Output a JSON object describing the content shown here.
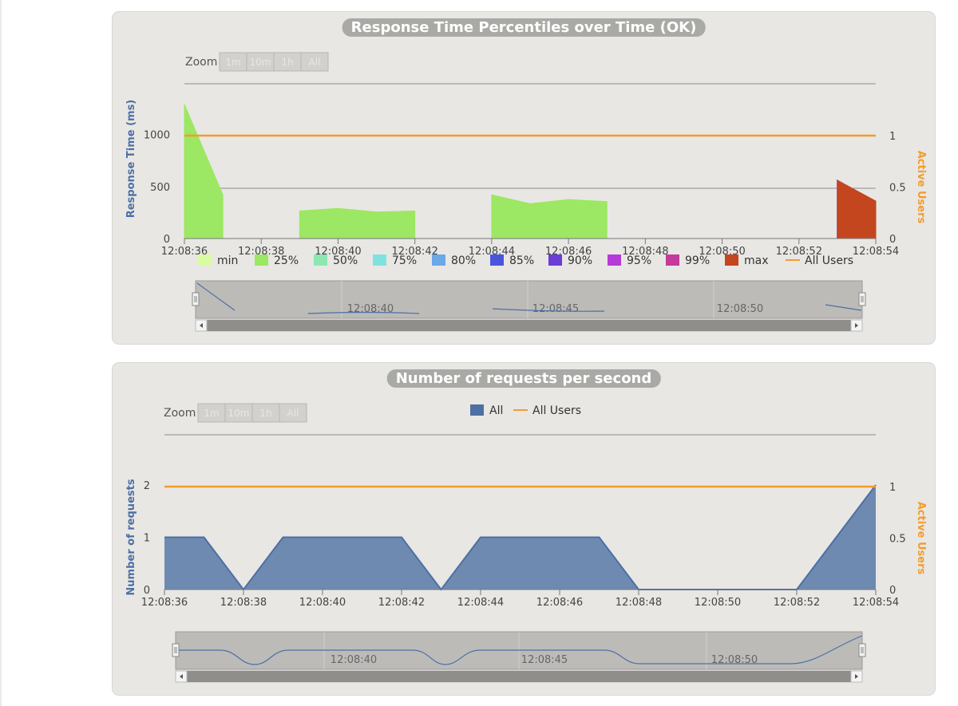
{
  "charts": {
    "response_time": {
      "title": "Response Time Percentiles over Time (OK)",
      "zoom": {
        "label": "Zoom",
        "buttons": [
          "1m",
          "10m",
          "1h",
          "All"
        ]
      },
      "y_left_label": "Response Time (ms)",
      "y_right_label": "Active Users",
      "y_left_ticks": [
        "0",
        "500",
        "1000"
      ],
      "y_right_ticks": [
        "0",
        "0.5",
        "1"
      ],
      "x_ticks": [
        "12:08:36",
        "12:08:38",
        "12:08:40",
        "12:08:42",
        "12:08:44",
        "12:08:46",
        "12:08:48",
        "12:08:50",
        "12:08:52",
        "12:08:54"
      ],
      "navigator_labels": [
        "12:08:40",
        "12:08:45",
        "12:08:50"
      ],
      "legend": [
        {
          "name": "min",
          "color": "#d9fca2"
        },
        {
          "name": "25%",
          "color": "#9ce763"
        },
        {
          "name": "50%",
          "color": "#8ce8b0"
        },
        {
          "name": "75%",
          "color": "#80e2e0"
        },
        {
          "name": "80%",
          "color": "#6aa8e6"
        },
        {
          "name": "85%",
          "color": "#4a55dc"
        },
        {
          "name": "90%",
          "color": "#6b3cd6"
        },
        {
          "name": "95%",
          "color": "#b53ad8"
        },
        {
          "name": "99%",
          "color": "#c4399a"
        },
        {
          "name": "max",
          "color": "#c4461f"
        },
        {
          "name": "All Users",
          "color": "#f39c2c",
          "line": true
        }
      ]
    },
    "requests": {
      "title": "Number of requests per second",
      "zoom": {
        "label": "Zoom",
        "buttons": [
          "1m",
          "10m",
          "1h",
          "All"
        ]
      },
      "y_left_label": "Number of requests",
      "y_right_label": "Active Users",
      "y_left_ticks": [
        "0",
        "1",
        "2"
      ],
      "y_right_ticks": [
        "0",
        "0.5",
        "1"
      ],
      "x_ticks": [
        "12:08:36",
        "12:08:38",
        "12:08:40",
        "12:08:42",
        "12:08:44",
        "12:08:46",
        "12:08:48",
        "12:08:50",
        "12:08:52",
        "12:08:54"
      ],
      "navigator_labels": [
        "12:08:40",
        "12:08:45",
        "12:08:50"
      ],
      "legend": [
        {
          "name": "All",
          "color": "#4d6fa3"
        },
        {
          "name": "All Users",
          "color": "#f39c2c",
          "line": true
        }
      ]
    }
  },
  "chart_data": [
    {
      "type": "area",
      "title": "Response Time Percentiles over Time (OK)",
      "xlabel": "",
      "ylabel": "Response Time (ms)",
      "y2label": "Active Users",
      "xlim": [
        "12:08:36",
        "12:08:54"
      ],
      "ylim": [
        0,
        1300
      ],
      "y2lim": [
        0,
        1
      ],
      "series": [
        {
          "name": "min",
          "axis": "left",
          "segments": [
            [
              [
                "12:08:36",
                1290
              ],
              [
                "12:08:37",
                420
              ]
            ],
            [
              [
                "12:08:39",
                265
              ],
              [
                "12:08:40",
                290
              ],
              [
                "12:08:41",
                255
              ],
              [
                "12:08:42",
                265
              ]
            ],
            [
              [
                "12:08:44",
                420
              ],
              [
                "12:08:45",
                335
              ],
              [
                "12:08:46",
                375
              ],
              [
                "12:08:47",
                355
              ]
            ],
            [
              [
                "12:08:53",
                560
              ],
              [
                "12:08:54",
                300
              ]
            ]
          ]
        },
        {
          "name": "25%",
          "axis": "left",
          "segments": [
            [
              [
                "12:08:36",
                1290
              ],
              [
                "12:08:37",
                420
              ]
            ],
            [
              [
                "12:08:39",
                265
              ],
              [
                "12:08:40",
                290
              ],
              [
                "12:08:41",
                255
              ],
              [
                "12:08:42",
                265
              ]
            ],
            [
              [
                "12:08:44",
                420
              ],
              [
                "12:08:45",
                335
              ],
              [
                "12:08:46",
                375
              ],
              [
                "12:08:47",
                355
              ]
            ],
            [
              [
                "12:08:53",
                560
              ],
              [
                "12:08:54",
                310
              ]
            ]
          ]
        },
        {
          "name": "50%",
          "axis": "left",
          "segments": [
            [
              [
                "12:08:53",
                560
              ],
              [
                "12:08:54",
                320
              ]
            ]
          ]
        },
        {
          "name": "75%",
          "axis": "left",
          "segments": [
            [
              [
                "12:08:53",
                560
              ],
              [
                "12:08:54",
                330
              ]
            ]
          ]
        },
        {
          "name": "80%",
          "axis": "left",
          "segments": [
            [
              [
                "12:08:53",
                560
              ],
              [
                "12:08:54",
                335
              ]
            ]
          ]
        },
        {
          "name": "85%",
          "axis": "left",
          "segments": [
            [
              [
                "12:08:53",
                560
              ],
              [
                "12:08:54",
                345
              ]
            ]
          ]
        },
        {
          "name": "90%",
          "axis": "left",
          "segments": [
            [
              [
                "12:08:53",
                560
              ],
              [
                "12:08:54",
                350
              ]
            ]
          ]
        },
        {
          "name": "95%",
          "axis": "left",
          "segments": [
            [
              [
                "12:08:53",
                560
              ],
              [
                "12:08:54",
                355
              ]
            ]
          ]
        },
        {
          "name": "99%",
          "axis": "left",
          "segments": [
            [
              [
                "12:08:53",
                560
              ],
              [
                "12:08:54",
                358
              ]
            ]
          ]
        },
        {
          "name": "max",
          "axis": "left",
          "segments": [
            [
              [
                "12:08:53",
                560
              ],
              [
                "12:08:54",
                360
              ]
            ]
          ]
        },
        {
          "name": "All Users",
          "axis": "right",
          "type": "line",
          "x": [
            "12:08:36",
            "12:08:54"
          ],
          "values": [
            1,
            1
          ]
        }
      ]
    },
    {
      "type": "area",
      "title": "Number of requests per second",
      "xlabel": "",
      "ylabel": "Number of requests",
      "y2label": "Active Users",
      "xlim": [
        "12:08:36",
        "12:08:54"
      ],
      "ylim": [
        0,
        2
      ],
      "y2lim": [
        0,
        1
      ],
      "categories": [
        "12:08:36",
        "12:08:37",
        "12:08:38",
        "12:08:39",
        "12:08:40",
        "12:08:41",
        "12:08:42",
        "12:08:43",
        "12:08:44",
        "12:08:45",
        "12:08:46",
        "12:08:47",
        "12:08:48",
        "12:08:49",
        "12:08:50",
        "12:08:51",
        "12:08:52",
        "12:08:53",
        "12:08:54"
      ],
      "series": [
        {
          "name": "All",
          "axis": "left",
          "values": [
            1,
            1,
            0,
            1,
            1,
            1,
            1,
            0,
            1,
            1,
            1,
            1,
            0,
            0,
            0,
            0,
            0,
            1,
            2
          ]
        },
        {
          "name": "All Users",
          "axis": "right",
          "type": "line",
          "values": [
            1,
            1,
            1,
            1,
            1,
            1,
            1,
            1,
            1,
            1,
            1,
            1,
            1,
            1,
            1,
            1,
            1,
            1,
            1
          ]
        }
      ]
    }
  ]
}
